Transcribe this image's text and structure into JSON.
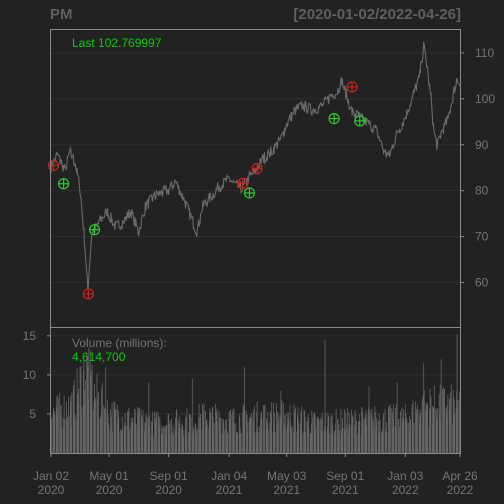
{
  "chart_data": {
    "type": "line",
    "title": "PM",
    "date_range": "[2020-01-02/2022-04-26]",
    "last_label": "Last 102.769997",
    "colors": {
      "background": "#222222",
      "frame": "#8a8a8a",
      "grid": "#2e2e2e",
      "price_line": "#6a6a6a",
      "volume_bar": "#666666",
      "last_text": "#00d000",
      "buy_marker": "#2ecc2e",
      "sell_marker": "#cc2020",
      "tick_text": "#757575"
    },
    "price_axis": {
      "ylim": [
        50.3,
        115.0
      ],
      "ticks": [
        60,
        70,
        80,
        90,
        100,
        110
      ]
    },
    "volume_axis": {
      "label": "Volume (millions):",
      "value": "4,614,700",
      "ylim": [
        0,
        16.0
      ],
      "ticks": [
        5,
        10,
        15
      ]
    },
    "x_axis": {
      "xlim": [
        "2020-01-02",
        "2022-04-26"
      ],
      "ticks": [
        {
          "date": "2020-01-02",
          "line1": "Jan 02",
          "line2": "2020"
        },
        {
          "date": "2020-05-01",
          "line1": "May 01",
          "line2": "2020"
        },
        {
          "date": "2020-09-01",
          "line1": "Sep 01",
          "line2": "2020"
        },
        {
          "date": "2021-01-04",
          "line1": "Jan 04",
          "line2": "2021"
        },
        {
          "date": "2021-05-03",
          "line1": "May 03",
          "line2": "2021"
        },
        {
          "date": "2021-09-01",
          "line1": "Sep 01",
          "line2": "2021"
        },
        {
          "date": "2022-01-03",
          "line1": "Jan 03",
          "line2": "2022"
        },
        {
          "date": "2022-04-26",
          "line1": "Apr 26",
          "line2": "2022"
        }
      ]
    },
    "price_series": [
      [
        "2020-01-02",
        85.2
      ],
      [
        "2020-01-15",
        87.8
      ],
      [
        "2020-01-31",
        84.5
      ],
      [
        "2020-02-10",
        88.5
      ],
      [
        "2020-02-21",
        86.0
      ],
      [
        "2020-03-02",
        80.5
      ],
      [
        "2020-03-10",
        71.0
      ],
      [
        "2020-03-18",
        58.5
      ],
      [
        "2020-03-26",
        70.5
      ],
      [
        "2020-04-10",
        73.0
      ],
      [
        "2020-04-27",
        75.5
      ],
      [
        "2020-05-15",
        72.0
      ],
      [
        "2020-06-01",
        73.5
      ],
      [
        "2020-06-15",
        75.5
      ],
      [
        "2020-07-01",
        71.0
      ],
      [
        "2020-07-15",
        76.5
      ],
      [
        "2020-08-01",
        78.5
      ],
      [
        "2020-08-15",
        79.5
      ],
      [
        "2020-09-01",
        80.0
      ],
      [
        "2020-09-15",
        82.0
      ],
      [
        "2020-10-01",
        78.5
      ],
      [
        "2020-10-20",
        73.5
      ],
      [
        "2020-10-30",
        71.0
      ],
      [
        "2020-11-10",
        76.5
      ],
      [
        "2020-11-30",
        79.0
      ],
      [
        "2020-12-15",
        81.0
      ],
      [
        "2021-01-04",
        82.5
      ],
      [
        "2021-01-20",
        81.0
      ],
      [
        "2021-02-01",
        80.5
      ],
      [
        "2021-02-15",
        83.0
      ],
      [
        "2021-03-01",
        84.5
      ],
      [
        "2021-03-15",
        87.0
      ],
      [
        "2021-04-01",
        88.5
      ],
      [
        "2021-04-20",
        91.0
      ],
      [
        "2021-05-03",
        94.5
      ],
      [
        "2021-05-20",
        97.5
      ],
      [
        "2021-06-05",
        98.5
      ],
      [
        "2021-06-25",
        97.5
      ],
      [
        "2021-07-15",
        98.5
      ],
      [
        "2021-08-01",
        100.5
      ],
      [
        "2021-08-15",
        101.5
      ],
      [
        "2021-08-25",
        104.0
      ],
      [
        "2021-09-01",
        101.5
      ],
      [
        "2021-09-15",
        97.0
      ],
      [
        "2021-10-01",
        96.0
      ],
      [
        "2021-10-20",
        94.5
      ],
      [
        "2021-11-05",
        93.0
      ],
      [
        "2021-11-20",
        88.5
      ],
      [
        "2021-12-01",
        87.5
      ],
      [
        "2021-12-15",
        92.0
      ],
      [
        "2022-01-03",
        96.0
      ],
      [
        "2022-01-20",
        101.0
      ],
      [
        "2022-02-01",
        104.5
      ],
      [
        "2022-02-10",
        111.5
      ],
      [
        "2022-02-17",
        107.0
      ],
      [
        "2022-02-25",
        100.0
      ],
      [
        "2022-03-03",
        93.0
      ],
      [
        "2022-03-10",
        89.5
      ],
      [
        "2022-03-18",
        92.5
      ],
      [
        "2022-04-01",
        95.5
      ],
      [
        "2022-04-12",
        101.0
      ],
      [
        "2022-04-20",
        104.5
      ],
      [
        "2022-04-26",
        102.77
      ]
    ],
    "signals": {
      "buy": [
        [
          "2020-01-28",
          81.5
        ],
        [
          "2020-04-01",
          71.5
        ],
        [
          "2021-02-15",
          79.5
        ],
        [
          "2021-08-09",
          95.7
        ],
        [
          "2021-10-01",
          95.2
        ]
      ],
      "sell": [
        [
          "2020-01-07",
          85.5
        ],
        [
          "2020-03-19",
          57.5
        ],
        [
          "2021-02-01",
          81.6
        ],
        [
          "2021-03-03",
          84.8
        ],
        [
          "2021-09-15",
          102.6
        ]
      ]
    },
    "volume_profile": [
      [
        "2020-01-02",
        5.0
      ],
      [
        "2020-02-15",
        6.0
      ],
      [
        "2020-03-15",
        10.5
      ],
      [
        "2020-04-01",
        7.5
      ],
      [
        "2020-05-01",
        5.0
      ],
      [
        "2020-06-15",
        4.3
      ],
      [
        "2020-08-01",
        3.8
      ],
      [
        "2020-10-01",
        4.0
      ],
      [
        "2020-11-15",
        4.6
      ],
      [
        "2021-01-04",
        4.2
      ],
      [
        "2021-03-01",
        4.6
      ],
      [
        "2021-05-01",
        4.8
      ],
      [
        "2021-07-01",
        3.8
      ],
      [
        "2021-09-01",
        4.0
      ],
      [
        "2021-11-01",
        4.3
      ],
      [
        "2022-01-03",
        4.4
      ],
      [
        "2022-02-15",
        6.0
      ],
      [
        "2022-04-26",
        6.2
      ]
    ],
    "volume_spikes": [
      [
        "2020-03-20",
        13.5
      ],
      [
        "2020-04-24",
        11.0
      ],
      [
        "2020-07-22",
        9.0
      ],
      [
        "2020-10-20",
        9.5
      ],
      [
        "2021-02-05",
        11.0
      ],
      [
        "2021-04-21",
        8.0
      ],
      [
        "2021-07-21",
        14.5
      ],
      [
        "2021-10-20",
        8.5
      ],
      [
        "2021-12-17",
        9.0
      ],
      [
        "2022-02-10",
        11.5
      ],
      [
        "2022-03-18",
        12.0
      ],
      [
        "2022-04-20",
        15.2
      ]
    ]
  }
}
